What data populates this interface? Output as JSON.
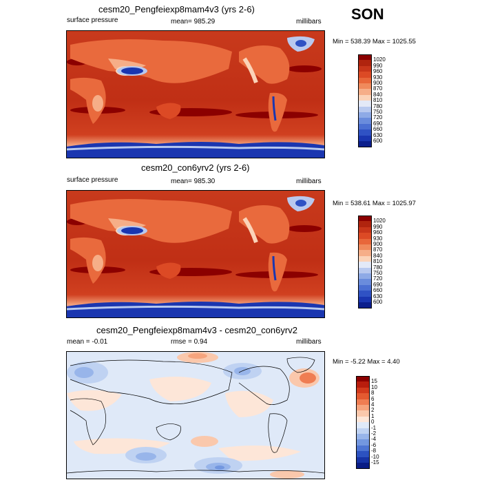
{
  "season": "SON",
  "panels": [
    {
      "title": "cesm20_Pengfeiexp8mam4v3 (yrs 2-6)",
      "left_label": "surface pressure",
      "center_label": "mean= 985.29",
      "right_label": "millibars",
      "stats": "Min = 538.39 Max = 1025.55",
      "colorbar": {
        "labels": [
          "1020",
          "990",
          "960",
          "930",
          "900",
          "870",
          "840",
          "810",
          "780",
          "750",
          "720",
          "690",
          "660",
          "630",
          "600"
        ],
        "colors": [
          "#8b0000",
          "#b0240e",
          "#c8361a",
          "#dc4a25",
          "#e8673a",
          "#f08a5c",
          "#f6ae88",
          "#fbd3b8",
          "#e3e9f7",
          "#b8c9ef",
          "#8eaae6",
          "#6a8cdc",
          "#4b6fd2",
          "#2f52c4",
          "#1a36b0",
          "#0c1f8c"
        ]
      }
    },
    {
      "title": "cesm20_con6yrv2 (yrs 2-6)",
      "left_label": "surface pressure",
      "center_label": "mean= 985.30",
      "right_label": "millibars",
      "stats": "Min = 538.61 Max = 1025.97",
      "colorbar": {
        "labels": [
          "1020",
          "990",
          "960",
          "930",
          "900",
          "870",
          "840",
          "810",
          "780",
          "750",
          "720",
          "690",
          "660",
          "630",
          "600"
        ],
        "colors": [
          "#8b0000",
          "#b0240e",
          "#c8361a",
          "#dc4a25",
          "#e8673a",
          "#f08a5c",
          "#f6ae88",
          "#fbd3b8",
          "#e3e9f7",
          "#b8c9ef",
          "#8eaae6",
          "#6a8cdc",
          "#4b6fd2",
          "#2f52c4",
          "#1a36b0",
          "#0c1f8c"
        ]
      }
    },
    {
      "title": "cesm20_Pengfeiexp8mam4v3 - cesm20_con6yrv2",
      "left_label": "mean =  -0.01",
      "center_label": "rmse =   0.94",
      "right_label": "millibars",
      "stats": "Min =  -5.22 Max =   4.40",
      "colorbar": {
        "labels": [
          "15",
          "10",
          "8",
          "6",
          "4",
          "2",
          "1",
          "0",
          "-1",
          "-2",
          "-4",
          "-6",
          "-8",
          "-10",
          "-15"
        ],
        "colors": [
          "#8b0000",
          "#b81d0d",
          "#d23a1c",
          "#e45a30",
          "#ef7d52",
          "#f6a47d",
          "#fac8ac",
          "#fde6d8",
          "#dfe9f8",
          "#bfd2f2",
          "#98b5ea",
          "#7397df",
          "#4e75d3",
          "#2c52c1",
          "#1734a6",
          "#0a1d85"
        ]
      }
    }
  ]
}
